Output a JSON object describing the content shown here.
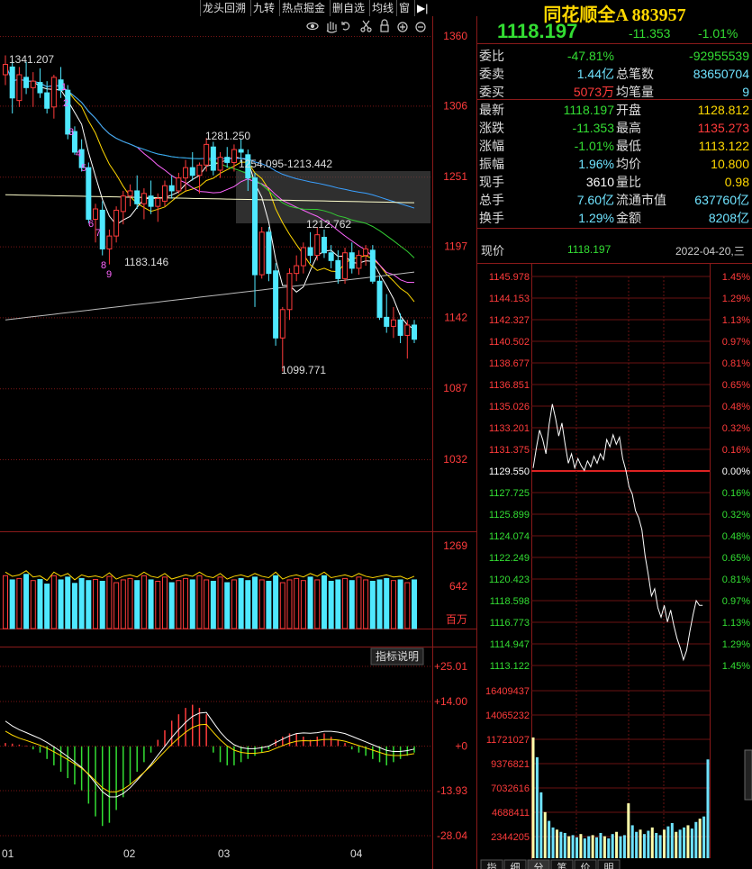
{
  "toolbar": {
    "items": [
      "龙头回溯",
      "九转",
      "热点掘金",
      "删自选",
      "均线",
      "窗"
    ]
  },
  "kline": {
    "price_ticks": [
      "1360",
      "1306",
      "1251",
      "1197",
      "1142",
      "1087",
      "1032"
    ],
    "annotations": [
      "1341.207",
      "1281.250",
      "1254.095-1213.442",
      "1212.762",
      "1183.146",
      "1099.771"
    ],
    "td_numbers": [
      "1",
      "2",
      "3",
      "4",
      "5",
      "6",
      "7",
      "8",
      "9"
    ],
    "volume_ticks": [
      "1269",
      "642",
      "百万"
    ],
    "macd_button": "指标说明",
    "macd_ticks": [
      "+25.01",
      "+14.00",
      "+0",
      "-13.93",
      "-28.04"
    ],
    "month_labels": [
      "01",
      "02",
      "03",
      "04"
    ]
  },
  "quote": {
    "name": "同花顺全A 883957",
    "price": "1118.197",
    "change": "-11.353",
    "pct": "-1.01%",
    "rows": [
      {
        "l1": "委比",
        "v1": "-47.81%",
        "l2": "",
        "v2": "-92955539"
      },
      {
        "l1": "委卖",
        "v1": "1.44亿",
        "l2": "总笔数",
        "v2": "83650704"
      },
      {
        "l1": "委买",
        "v1": "5073万",
        "l2": "均笔量",
        "v2": "9"
      },
      {
        "l1": "最新",
        "v1": "1118.197",
        "l2": "开盘",
        "v2": "1128.812"
      },
      {
        "l1": "涨跌",
        "v1": "-11.353",
        "l2": "最高",
        "v2": "1135.273"
      },
      {
        "l1": "涨幅",
        "v1": "-1.01%",
        "l2": "最低",
        "v2": "1113.122"
      },
      {
        "l1": "振幅",
        "v1": "1.96%",
        "l2": "均价",
        "v2": "10.800"
      },
      {
        "l1": "现手",
        "v1": "3610",
        "l2": "量比",
        "v2": "0.98"
      },
      {
        "l1": "总手",
        "v1": "7.60亿",
        "l2": "流通市值",
        "v2": "637760亿"
      },
      {
        "l1": "换手",
        "v1": "1.29%",
        "l2": "金额",
        "v2": "8208亿"
      }
    ]
  },
  "intraday": {
    "header_label": "现价",
    "header_price": "1118.197",
    "header_date": "2022-04-20,三",
    "price_ticks": [
      "1145.978",
      "1144.153",
      "1142.327",
      "1140.502",
      "1138.677",
      "1136.851",
      "1135.026",
      "1133.201",
      "1131.375",
      "1129.550",
      "1127.725",
      "1125.899",
      "1124.074",
      "1122.249",
      "1120.423",
      "1118.598",
      "1116.773",
      "1114.947",
      "1113.122"
    ],
    "pct_ticks": [
      "1.45%",
      "1.29%",
      "1.13%",
      "0.97%",
      "0.81%",
      "0.65%",
      "0.48%",
      "0.32%",
      "0.16%",
      "0.00%",
      "0.16%",
      "0.32%",
      "0.48%",
      "0.65%",
      "0.81%",
      "0.97%",
      "1.13%",
      "1.29%",
      "1.45%"
    ],
    "volume_ticks": [
      "16409437",
      "14065232",
      "11721027",
      "9376821",
      "7032616",
      "4688411",
      "2344205"
    ],
    "tabs": [
      "指",
      "细",
      "分",
      "笔",
      "价",
      "明"
    ]
  },
  "chart_data": [
    {
      "type": "candlestick",
      "title": "",
      "ylim": [
        1032,
        1360
      ],
      "months": [
        "01",
        "02",
        "03",
        "04"
      ],
      "ohlc": [
        [
          1330,
          1345,
          1322,
          1338
        ],
        [
          1336,
          1341,
          1300,
          1312
        ],
        [
          1310,
          1336,
          1305,
          1330
        ],
        [
          1328,
          1340,
          1315,
          1320
        ],
        [
          1320,
          1332,
          1305,
          1325
        ],
        [
          1324,
          1335,
          1312,
          1316
        ],
        [
          1316,
          1325,
          1300,
          1304
        ],
        [
          1305,
          1330,
          1296,
          1328
        ],
        [
          1326,
          1336,
          1312,
          1318
        ],
        [
          1318,
          1322,
          1280,
          1284
        ],
        [
          1286,
          1290,
          1268,
          1270
        ],
        [
          1272,
          1280,
          1255,
          1258
        ],
        [
          1258,
          1262,
          1215,
          1218
        ],
        [
          1218,
          1230,
          1200,
          1226
        ],
        [
          1225,
          1232,
          1190,
          1195
        ],
        [
          1195,
          1210,
          1183,
          1205
        ],
        [
          1205,
          1228,
          1200,
          1225
        ],
        [
          1224,
          1240,
          1214,
          1236
        ],
        [
          1236,
          1245,
          1228,
          1240
        ],
        [
          1240,
          1252,
          1226,
          1230
        ],
        [
          1230,
          1242,
          1218,
          1238
        ],
        [
          1236,
          1248,
          1222,
          1228
        ],
        [
          1228,
          1238,
          1216,
          1234
        ],
        [
          1232,
          1248,
          1228,
          1244
        ],
        [
          1244,
          1252,
          1234,
          1240
        ],
        [
          1240,
          1254,
          1238,
          1250
        ],
        [
          1250,
          1264,
          1240,
          1258
        ],
        [
          1258,
          1270,
          1248,
          1252
        ],
        [
          1252,
          1262,
          1238,
          1260
        ],
        [
          1260,
          1281,
          1255,
          1276
        ],
        [
          1274,
          1278,
          1252,
          1256
        ],
        [
          1256,
          1270,
          1250,
          1266
        ],
        [
          1266,
          1274,
          1258,
          1262
        ],
        [
          1262,
          1276,
          1255,
          1272
        ],
        [
          1272,
          1280,
          1262,
          1270
        ],
        [
          1268,
          1272,
          1240,
          1250
        ],
        [
          1250,
          1254,
          1150,
          1175
        ],
        [
          1175,
          1212,
          1172,
          1208
        ],
        [
          1208,
          1212,
          1170,
          1176
        ],
        [
          1178,
          1184,
          1120,
          1126
        ],
        [
          1126,
          1150,
          1100,
          1148
        ],
        [
          1148,
          1180,
          1140,
          1176
        ],
        [
          1176,
          1190,
          1170,
          1182
        ],
        [
          1182,
          1200,
          1176,
          1196
        ],
        [
          1196,
          1208,
          1184,
          1190
        ],
        [
          1190,
          1212,
          1186,
          1206
        ],
        [
          1204,
          1210,
          1188,
          1192
        ],
        [
          1192,
          1198,
          1180,
          1186
        ],
        [
          1186,
          1194,
          1168,
          1172
        ],
        [
          1172,
          1196,
          1168,
          1192
        ],
        [
          1192,
          1200,
          1176,
          1180
        ],
        [
          1180,
          1194,
          1175,
          1190
        ],
        [
          1190,
          1198,
          1182,
          1195
        ],
        [
          1194,
          1198,
          1168,
          1170
        ],
        [
          1170,
          1174,
          1140,
          1142
        ],
        [
          1142,
          1160,
          1130,
          1135
        ],
        [
          1135,
          1150,
          1126,
          1140
        ],
        [
          1140,
          1145,
          1122,
          1128
        ],
        [
          1128,
          1140,
          1110,
          1136
        ],
        [
          1136,
          1140,
          1122,
          1125
        ]
      ],
      "ma_series": [
        "MA5",
        "MA10",
        "MA20",
        "MA30",
        "MA60",
        "MA120"
      ]
    },
    {
      "type": "bar",
      "title": "volume",
      "ylim": [
        0,
        1269
      ],
      "values": [
        760,
        700,
        720,
        780,
        690,
        705,
        640,
        760,
        700,
        740,
        650,
        720,
        690,
        705,
        680,
        750,
        660,
        700,
        720,
        690,
        760,
        700,
        680,
        740,
        660,
        690,
        720,
        700,
        760,
        700,
        680,
        740,
        660,
        700,
        720,
        690,
        740,
        700,
        680,
        760,
        660,
        700,
        720,
        690,
        740,
        700,
        760,
        680,
        700,
        720,
        690,
        740,
        700,
        680,
        700,
        720,
        690,
        700,
        660,
        700
      ]
    },
    {
      "type": "bar",
      "title": "macd",
      "ylim": [
        -28.04,
        25.01
      ],
      "values": [
        1,
        0.8,
        0.5,
        0.2,
        -1,
        -2,
        -4,
        -6,
        -8,
        -10,
        -12,
        -14,
        -18,
        -22,
        -25,
        -24,
        -20,
        -16,
        -12,
        -8,
        -5,
        -2,
        2,
        5,
        8,
        10,
        12,
        13,
        12,
        10,
        -2,
        -5,
        -6,
        -6,
        -5,
        -4,
        -3,
        -2,
        -1,
        2,
        3,
        4,
        4,
        3,
        2,
        3,
        4,
        3,
        2,
        1,
        -1,
        -2,
        -3,
        -4,
        -5,
        -6,
        -5,
        -4,
        -3,
        -2
      ]
    },
    {
      "type": "line",
      "title": "intraday",
      "ylim": [
        1113.122,
        1145.978
      ],
      "base": 1129.55,
      "values": [
        1129.8,
        1131.5,
        1133.0,
        1132.2,
        1131.0,
        1133.5,
        1135.2,
        1134.0,
        1132.5,
        1133.6,
        1131.8,
        1130.2,
        1131.0,
        1129.8,
        1130.6,
        1130.0,
        1129.6,
        1130.4,
        1129.9,
        1130.8,
        1130.2,
        1131.0,
        1130.5,
        1132.2,
        1131.6,
        1132.6,
        1131.8,
        1132.4,
        1130.6,
        1129.6,
        1128.2,
        1127.6,
        1126.2,
        1125.6,
        1124.6,
        1122.4,
        1120.8,
        1119.0,
        1119.6,
        1118.0,
        1117.2,
        1118.2,
        1116.8,
        1117.8,
        1116.5,
        1115.4,
        1114.6,
        1113.6,
        1114.4,
        1116.0,
        1117.4,
        1118.6,
        1118.2,
        1118.197
      ]
    },
    {
      "type": "bar",
      "title": "intraday volume",
      "ylim": [
        0,
        16409437
      ],
      "values": [
        11000000,
        9200000,
        6000000,
        4200000,
        3400000,
        2800000,
        2600000,
        2400000,
        2300000,
        2000000,
        2100000,
        1900000,
        2200000,
        1800000,
        2000000,
        2100000,
        1900000,
        2300000,
        2000000,
        1800000,
        2200000,
        2400000,
        2000000,
        2100000,
        5000000,
        3000000,
        2400000,
        2600000,
        2200000,
        2500000,
        2800000,
        2300000,
        2100000,
        2600000,
        2900000,
        3200000,
        2400000,
        2600000,
        2800000,
        3000000,
        2700000,
        3300000,
        3600000,
        3800000,
        9000000
      ]
    }
  ]
}
